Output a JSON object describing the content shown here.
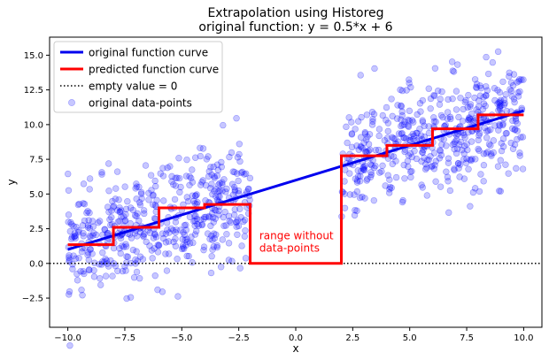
{
  "chart_data": {
    "type": "scatter",
    "title": "Extrapolation using Historeg",
    "subtitle": "original function: y = 0.5*x + 6",
    "xlabel": "x",
    "ylabel": "y",
    "xlim": [
      -10.8,
      10.8
    ],
    "ylim": [
      -4.6,
      16.3
    ],
    "x_ticks": [
      -10.0,
      -7.5,
      -5.0,
      -2.5,
      0.0,
      2.5,
      5.0,
      7.5,
      10.0
    ],
    "x_tick_labels": [
      "−10.0",
      "−7.5",
      "−5.0",
      "−2.5",
      "0.0",
      "2.5",
      "5.0",
      "7.5",
      "10.0"
    ],
    "y_ticks": [
      -2.5,
      0.0,
      2.5,
      5.0,
      7.5,
      10.0,
      12.5,
      15.0
    ],
    "y_tick_labels": [
      "−2.5",
      "0.0",
      "2.5",
      "5.0",
      "7.5",
      "10.0",
      "12.5",
      "15.0"
    ],
    "grid": false,
    "legend_position": "top-left",
    "legend": [
      {
        "label": "original function curve",
        "style": "line",
        "color": "#0000ee"
      },
      {
        "label": "predicted function curve",
        "style": "line",
        "color": "#ff0000"
      },
      {
        "label": "empty value = 0",
        "style": "dotted",
        "color": "#000000"
      },
      {
        "label": "original data-points",
        "style": "marker",
        "color": "#0000ff"
      }
    ],
    "series": [
      {
        "name": "original function curve",
        "type": "line",
        "color": "#0000ee",
        "x": [
          -10.0,
          10.0
        ],
        "y": [
          1.0,
          11.0
        ]
      },
      {
        "name": "predicted function curve",
        "type": "step",
        "color": "#ff0000",
        "x": [
          -10.0,
          -8.0,
          -8.0,
          -6.0,
          -6.0,
          -4.0,
          -4.0,
          -2.0,
          -2.0,
          2.0,
          2.0,
          4.0,
          4.0,
          6.0,
          6.0,
          8.0,
          8.0,
          10.0
        ],
        "y": [
          1.35,
          1.35,
          2.6,
          2.6,
          4.0,
          4.0,
          4.25,
          4.25,
          0.0,
          0.0,
          7.75,
          7.75,
          8.5,
          8.5,
          9.7,
          9.7,
          10.7,
          10.7
        ]
      },
      {
        "name": "empty value = 0",
        "type": "hline",
        "color": "#000000",
        "y": 0.0
      },
      {
        "name": "original data-points",
        "type": "scatter",
        "color": "#0000ff",
        "alpha": 0.22,
        "segments": [
          {
            "x_range": [
              -10.0,
              -2.0
            ],
            "slope": 0.5,
            "intercept": 6.0,
            "spread": 2.0,
            "count": 500
          },
          {
            "x_range": [
              2.0,
              10.0
            ],
            "slope": 0.5,
            "intercept": 6.0,
            "spread": 2.0,
            "count": 500
          }
        ]
      }
    ],
    "annotations": [
      {
        "text_lines": [
          "range without",
          "data-points"
        ],
        "x": -1.6,
        "y": 1.75,
        "color": "#ff0000"
      }
    ]
  }
}
